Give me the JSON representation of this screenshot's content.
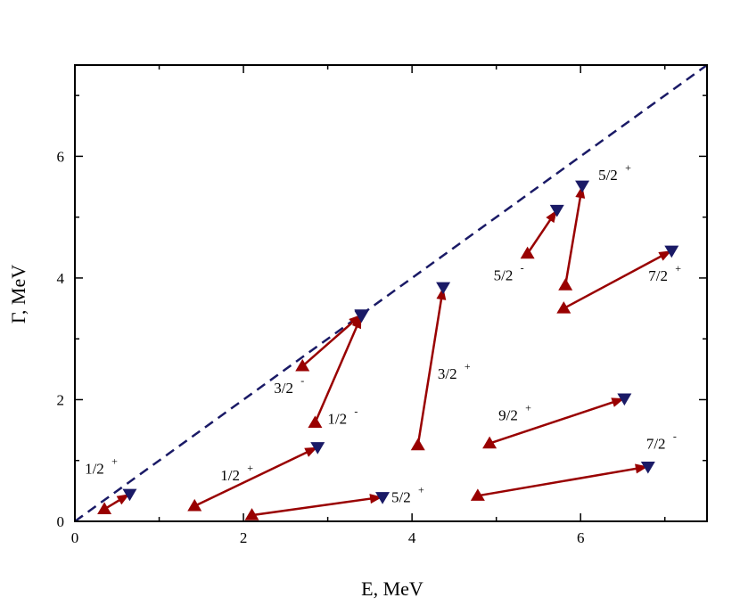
{
  "chart_data": {
    "type": "scatter",
    "xlabel": "E, MeV",
    "ylabel": "Γ, MeV",
    "xlim": [
      0,
      7.5
    ],
    "ylim": [
      0,
      7.5
    ],
    "x_ticks": [
      0,
      2,
      4,
      6
    ],
    "y_ticks": [
      0,
      2,
      4,
      6
    ],
    "grid": false,
    "reference_line": {
      "style": "dashed",
      "points": [
        [
          0,
          0
        ],
        [
          7.5,
          7.5
        ]
      ]
    },
    "colors": {
      "arrow": "#990000",
      "up_marker": "#990000",
      "down_marker": "#1a1a66",
      "diagonal": "#1a1a66"
    },
    "arrows": [
      {
        "from": [
          0.35,
          0.2
        ],
        "to": [
          0.65,
          0.45
        ],
        "label": "1/2",
        "sup": "+"
      },
      {
        "from": [
          1.42,
          0.25
        ],
        "to": [
          2.88,
          1.22
        ],
        "label": "1/2",
        "sup": "+"
      },
      {
        "from": [
          2.1,
          0.1
        ],
        "to": [
          3.65,
          0.4
        ],
        "label": "5/2",
        "sup": "+"
      },
      {
        "from": [
          2.7,
          2.55
        ],
        "to": [
          3.4,
          3.4
        ],
        "label": "3/2",
        "sup": "-"
      },
      {
        "from": [
          2.85,
          1.62
        ],
        "to": [
          3.4,
          3.38
        ],
        "label": "1/2",
        "sup": "-"
      },
      {
        "from": [
          4.07,
          1.25
        ],
        "to": [
          4.37,
          3.85
        ],
        "label": "3/2",
        "sup": "+"
      },
      {
        "from": [
          4.78,
          0.42
        ],
        "to": [
          6.8,
          0.9
        ],
        "label": "7/2",
        "sup": "-"
      },
      {
        "from": [
          4.92,
          1.28
        ],
        "to": [
          6.52,
          2.02
        ],
        "label": "9/2",
        "sup": "+"
      },
      {
        "from": [
          5.37,
          4.4
        ],
        "to": [
          5.72,
          5.12
        ],
        "label": "5/2",
        "sup": "-"
      },
      {
        "from": [
          5.82,
          3.88
        ],
        "to": [
          6.02,
          5.52
        ],
        "label": "5/2",
        "sup": "+"
      },
      {
        "from": [
          5.8,
          3.5
        ],
        "to": [
          7.08,
          4.45
        ],
        "label": "7/2",
        "sup": "+"
      }
    ]
  }
}
